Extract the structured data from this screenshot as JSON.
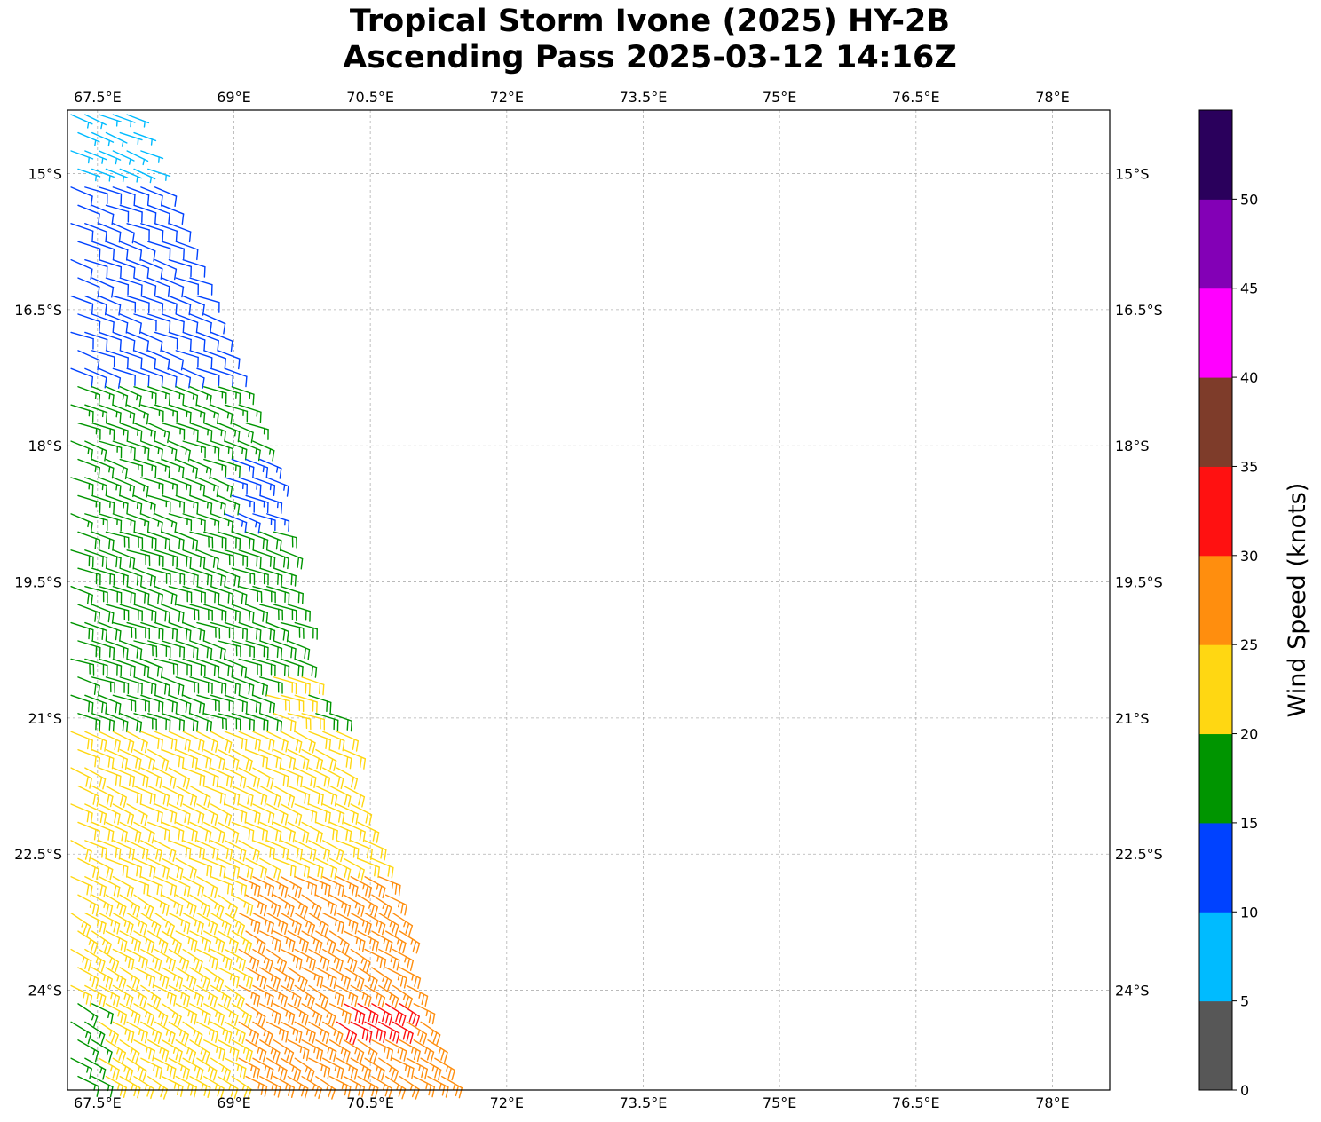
{
  "chart_data": {
    "type": "wind-barb-map",
    "title_line1": "Tropical Storm Ivone (2025) HY-2B",
    "title_line2": "Ascending Pass 2025-03-12 14:16Z",
    "x_ticks": [
      {
        "value": 67.5,
        "label": "67.5°E"
      },
      {
        "value": 69,
        "label": "69°E"
      },
      {
        "value": 70.5,
        "label": "70.5°E"
      },
      {
        "value": 72,
        "label": "72°E"
      },
      {
        "value": 73.5,
        "label": "73.5°E"
      },
      {
        "value": 75,
        "label": "75°E"
      },
      {
        "value": 76.5,
        "label": "76.5°E"
      },
      {
        "value": 78,
        "label": "78°E"
      }
    ],
    "y_ticks": [
      {
        "value": -15,
        "label": "15°S"
      },
      {
        "value": -16.5,
        "label": "16.5°S"
      },
      {
        "value": -18,
        "label": "18°S"
      },
      {
        "value": -19.5,
        "label": "19.5°S"
      },
      {
        "value": -21,
        "label": "21°S"
      },
      {
        "value": -22.5,
        "label": "22.5°S"
      },
      {
        "value": -24,
        "label": "24°S"
      }
    ],
    "xlim": [
      67.17,
      78.63
    ],
    "ylim": [
      -25.1,
      -14.3
    ],
    "grid": true,
    "colorbar": {
      "label": "Wind Speed (knots)",
      "ticks": [
        "0",
        "5",
        "10",
        "15",
        "20",
        "25",
        "30",
        "35",
        "40",
        "45",
        "50"
      ],
      "bins": [
        {
          "from": 0,
          "to": 5,
          "color": "#575757"
        },
        {
          "from": 5,
          "to": 10,
          "color": "#00bbff"
        },
        {
          "from": 10,
          "to": 15,
          "color": "#0042ff"
        },
        {
          "from": 15,
          "to": 20,
          "color": "#009500"
        },
        {
          "from": 20,
          "to": 25,
          "color": "#ffd712"
        },
        {
          "from": 25,
          "to": 30,
          "color": "#ff8e0e"
        },
        {
          "from": 30,
          "to": 35,
          "color": "#ff1111"
        },
        {
          "from": 35,
          "to": 40,
          "color": "#7e3c2a"
        },
        {
          "from": 40,
          "to": 45,
          "color": "#ff00ff"
        },
        {
          "from": 45,
          "to": 50,
          "color": "#8300b6"
        },
        {
          "from": 50,
          "to": 55,
          "color": "#2a005c"
        }
      ]
    },
    "swath": {
      "west_lon": 67.17,
      "east_edge": [
        [
          -14.3,
          67.8
        ],
        [
          -15.0,
          68.2
        ],
        [
          -16.5,
          68.8
        ],
        [
          -18.0,
          69.3
        ],
        [
          -19.5,
          69.6
        ],
        [
          -20.5,
          69.8
        ],
        [
          -21.0,
          70.1
        ],
        [
          -22.5,
          70.6
        ],
        [
          -24.0,
          71.0
        ],
        [
          -25.1,
          71.5
        ]
      ],
      "rows_per_degree": 5,
      "cols_per_degree": 6.5
    },
    "wind_regions": [
      {
        "lat_from": -14.3,
        "lat_to": -15.0,
        "speed": 7,
        "dir_from": 112
      },
      {
        "lat_from": -15.0,
        "lat_to": -17.2,
        "speed": 12,
        "dir_from": 110
      },
      {
        "lat_from": -17.2,
        "lat_to": -18.8,
        "speed": 16,
        "dir_from": 110
      },
      {
        "lat_from": -18.8,
        "lat_to": -21.0,
        "speed": 18,
        "dir_from": 108
      },
      {
        "lat_from": -21.0,
        "lat_to": -22.8,
        "speed": 22,
        "dir_from": 115
      },
      {
        "lat_from": -22.8,
        "lat_to": -25.1,
        "speed": 24,
        "dir_from": 120
      }
    ],
    "special_zones": [
      {
        "lat_from": -18.0,
        "lat_to": -18.8,
        "lon_from": 68.9,
        "lon_to": 69.4,
        "speed": 13
      },
      {
        "lat_from": -20.5,
        "lat_to": -21.3,
        "lon_from": 69.3,
        "lon_to": 69.8,
        "speed": 22
      },
      {
        "lat_from": -22.6,
        "lat_to": -25.1,
        "lon_from": 69.0,
        "lon_to": 71.6,
        "speed": 27
      },
      {
        "lat_from": -24.0,
        "lat_to": -24.5,
        "lon_from": 70.1,
        "lon_to": 70.9,
        "speed": 32
      },
      {
        "lat_from": -24.0,
        "lat_to": -25.1,
        "lon_from": 67.17,
        "lon_to": 67.5,
        "speed": 17
      }
    ]
  }
}
